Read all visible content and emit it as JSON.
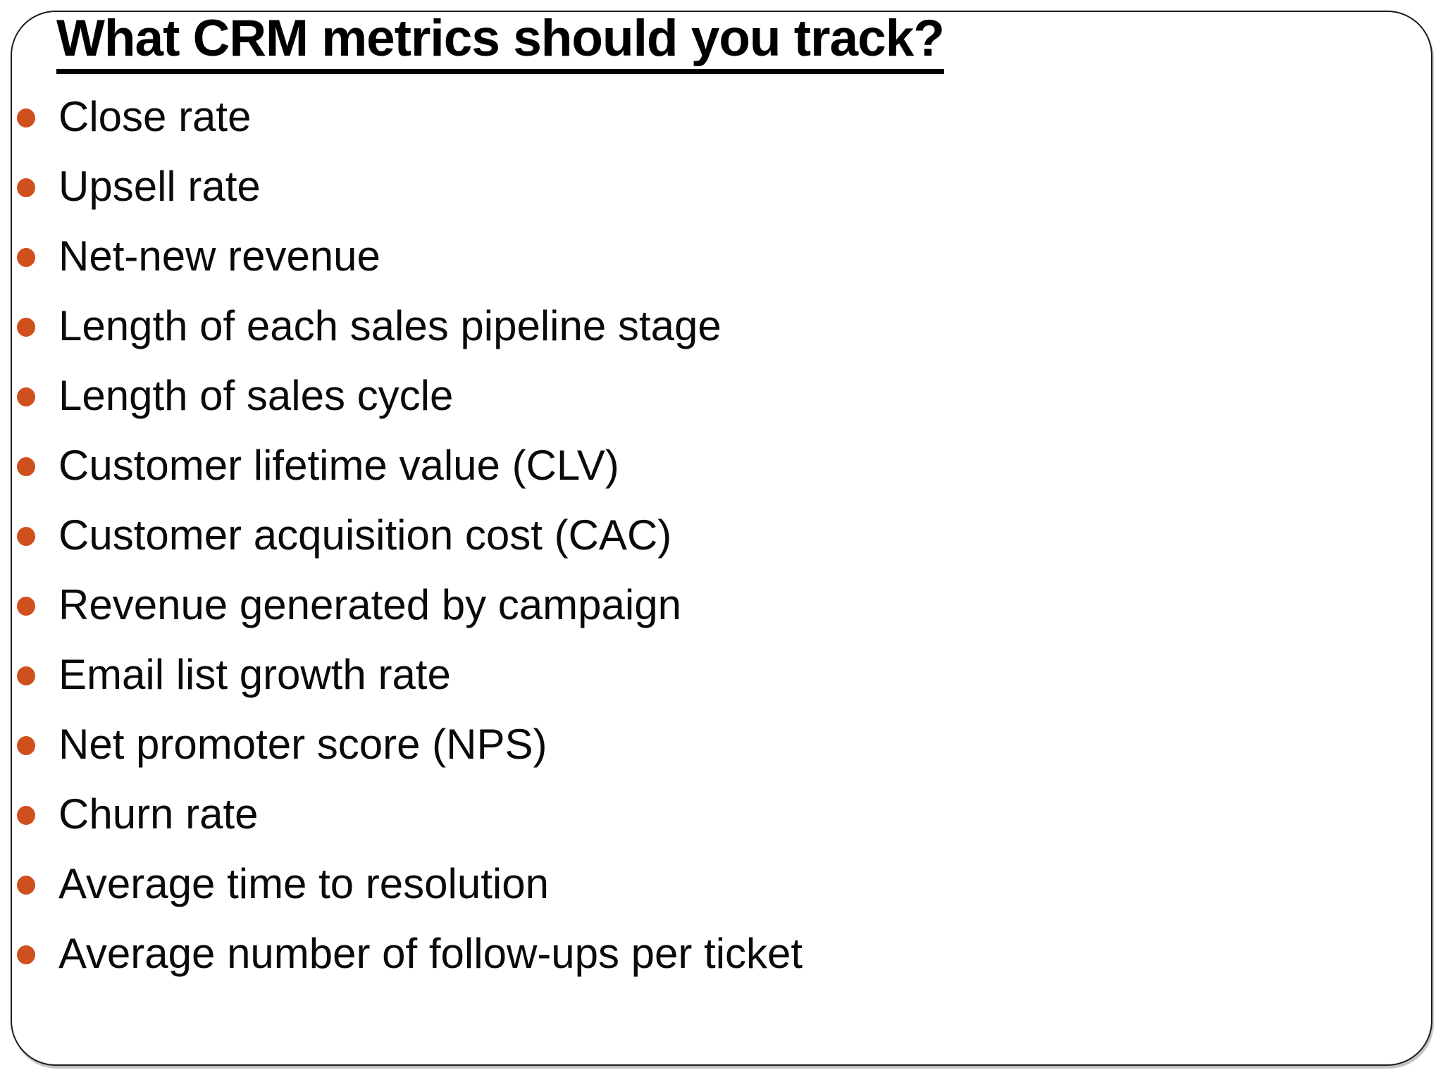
{
  "slide": {
    "title": "What CRM metrics should you track?",
    "bullets": [
      "Close rate",
      "Upsell rate",
      "Net-new revenue",
      "Length of each sales pipeline stage",
      "Length of sales cycle",
      "Customer lifetime value (CLV)",
      "Customer acquisition cost (CAC)",
      "Revenue generated by campaign",
      "Email list growth rate",
      "Net promoter score (NPS)",
      "Churn rate",
      "Average time to resolution",
      "Average number of follow-ups per ticket"
    ],
    "colors": {
      "bullet": "#CF4F1D",
      "text": "#000000",
      "border": "#1C1C1C",
      "background": "#FFFFFF"
    }
  }
}
